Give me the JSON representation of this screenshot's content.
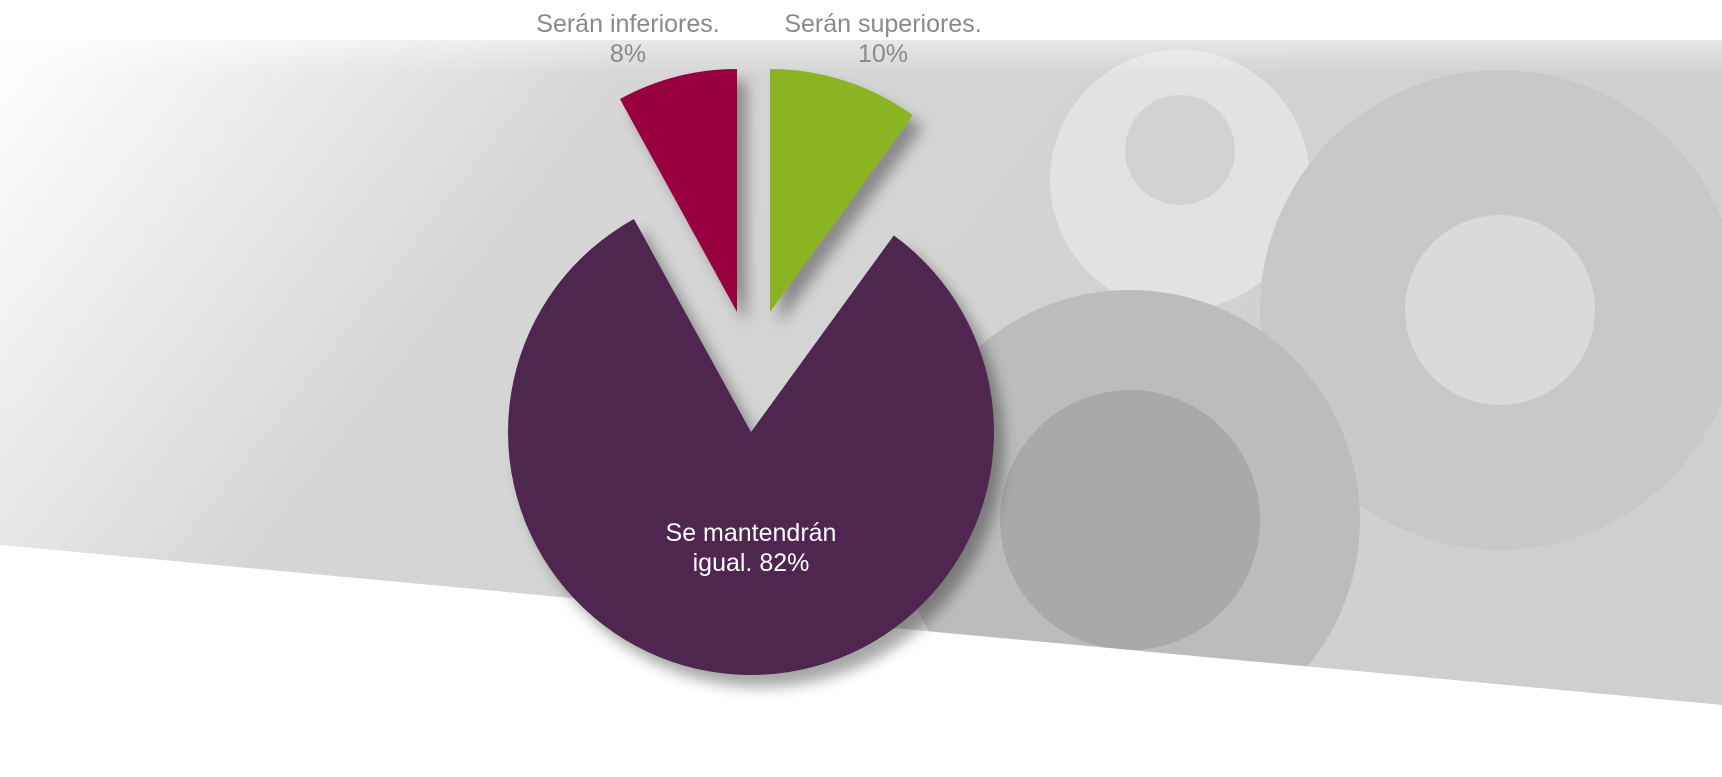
{
  "chart_data": {
    "type": "pie",
    "categories": [
      "Serán superiores.",
      "Se mantendrán igual.",
      "Serán inferiores."
    ],
    "values": [
      10,
      82,
      8
    ],
    "value_labels": [
      "10%",
      "82%",
      "8%"
    ],
    "colors": [
      "#8ab420",
      "#4f2750",
      "#98003f"
    ]
  }
}
